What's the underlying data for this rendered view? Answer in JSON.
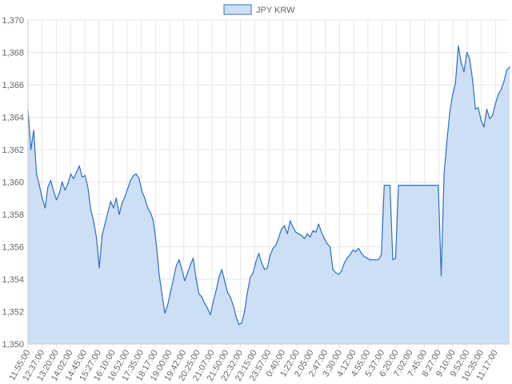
{
  "chart_data": {
    "type": "area",
    "title": "",
    "xlabel": "",
    "ylabel": "",
    "legend": {
      "position": "top-center"
    },
    "grid": true,
    "colors": {
      "line": "#2e6fc4",
      "fill": "#cddff5",
      "grid": "#e6e6e6",
      "axis": "#c8c8c8",
      "text": "#666666"
    },
    "ylim": [
      1350,
      1370
    ],
    "y_ticks": [
      "1,350",
      "1,352",
      "1,354",
      "1,356",
      "1,358",
      "1,360",
      "1,362",
      "1,364",
      "1,366",
      "1,368",
      "1,370"
    ],
    "x_tick_labels": [
      "11:55:00",
      "12:37:00",
      "13:20:00",
      "14:02:00",
      "14:45:00",
      "15:27:00",
      "16:10:00",
      "16:52:00",
      "17:35:00",
      "18:17:00",
      "19:00:00",
      "19:42:00",
      "20:25:00",
      "21:07:00",
      "21:50:00",
      "22:32:00",
      "23:15:00",
      "23:57:00",
      "0:40:00",
      "1:22:00",
      "2:05:00",
      "2:47:00",
      "3:30:00",
      "4:12:00",
      "4:55:00",
      "5:37:00",
      "6:20:00",
      "7:02:00",
      "7:45:00",
      "8:27:00",
      "9:10:00",
      "9:52:00",
      "10:35:00",
      "11:17:00"
    ],
    "series": [
      {
        "name": "JPY KRW",
        "values": [
          1364.5,
          1362.0,
          1363.2,
          1360.5,
          1359.8,
          1359.0,
          1358.4,
          1359.7,
          1360.1,
          1359.4,
          1358.9,
          1359.3,
          1360.0,
          1359.5,
          1359.9,
          1360.5,
          1360.2,
          1360.6,
          1361.0,
          1360.3,
          1360.4,
          1359.7,
          1358.3,
          1357.6,
          1356.6,
          1354.7,
          1356.7,
          1357.4,
          1358.1,
          1358.8,
          1358.4,
          1359.0,
          1358.0,
          1358.7,
          1359.1,
          1359.6,
          1360.1,
          1360.4,
          1360.5,
          1360.2,
          1359.4,
          1359.0,
          1358.4,
          1358.1,
          1357.6,
          1356.2,
          1354.3,
          1353.1,
          1351.9,
          1352.4,
          1353.2,
          1354.0,
          1354.8,
          1355.2,
          1354.6,
          1353.9,
          1354.4,
          1354.9,
          1355.3,
          1354.0,
          1353.1,
          1352.9,
          1352.5,
          1352.2,
          1351.8,
          1352.6,
          1353.3,
          1354.1,
          1354.6,
          1353.9,
          1353.2,
          1352.9,
          1352.4,
          1351.7,
          1351.2,
          1351.3,
          1352.0,
          1353.2,
          1354.1,
          1354.4,
          1355.1,
          1355.6,
          1355.0,
          1354.6,
          1354.7,
          1355.5,
          1355.9,
          1356.1,
          1356.6,
          1357.1,
          1357.3,
          1356.8,
          1357.6,
          1357.2,
          1356.9,
          1356.8,
          1356.7,
          1356.5,
          1356.8,
          1356.6,
          1357.0,
          1356.9,
          1357.4,
          1356.9,
          1356.5,
          1356.2,
          1356.0,
          1354.6,
          1354.4,
          1354.3,
          1354.5,
          1355.0,
          1355.3,
          1355.5,
          1355.8,
          1355.7,
          1355.9,
          1355.6,
          1355.4,
          1355.3,
          1355.2,
          1355.2,
          1355.2,
          1355.2,
          1355.5,
          1359.8,
          1359.8,
          1359.8,
          1355.2,
          1355.3,
          1359.8,
          1359.8,
          1359.8,
          1359.8,
          1359.8,
          1359.8,
          1359.8,
          1359.8,
          1359.8,
          1359.8,
          1359.8,
          1359.8,
          1359.8,
          1359.8,
          1359.8,
          1354.2,
          1360.5,
          1362.5,
          1364.3,
          1365.4,
          1366.1,
          1368.4,
          1367.4,
          1366.8,
          1368.0,
          1367.6,
          1366.3,
          1364.5,
          1364.6,
          1363.8,
          1363.4,
          1364.5,
          1363.9,
          1364.1,
          1364.8,
          1365.4,
          1365.7,
          1366.2,
          1366.9,
          1367.1
        ]
      }
    ]
  }
}
